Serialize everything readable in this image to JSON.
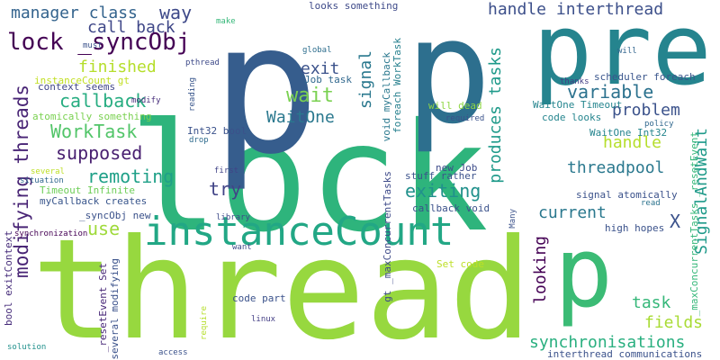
{
  "words": [
    {
      "text": "lock",
      "color": "#2eb47c"
    },
    {
      "text": "thread",
      "color": "#97d83f"
    },
    {
      "text": "p",
      "color": "#365d8d"
    },
    {
      "text": "p",
      "color": "#2d6f8e"
    },
    {
      "text": "pre",
      "color": "#25848e"
    },
    {
      "text": "p",
      "color": "#3bbb75"
    },
    {
      "text": "instanceCount",
      "color": "#22a785"
    },
    {
      "text": "lock _syncObj",
      "color": "#440154"
    },
    {
      "text": "manager class",
      "color": "#33638d"
    },
    {
      "text": "way",
      "color": "#3e4989"
    },
    {
      "text": "call back",
      "color": "#3f4788"
    },
    {
      "text": "handle interthread",
      "color": "#3c4f8a"
    },
    {
      "text": "modifying threads",
      "color": "#482475"
    },
    {
      "text": "signal",
      "color": "#2a788e"
    },
    {
      "text": "finished",
      "color": "#b5de2b"
    },
    {
      "text": "produces tasks",
      "color": "#1f9a8a"
    },
    {
      "text": "exit",
      "color": "#3b528b"
    },
    {
      "text": "variable",
      "color": "#2c728e"
    },
    {
      "text": "callback",
      "color": "#27ad81"
    },
    {
      "text": "wait",
      "color": "#7ad151"
    },
    {
      "text": "WaitOne",
      "color": "#2a788e"
    },
    {
      "text": "problem",
      "color": "#3b528b"
    },
    {
      "text": "WorkTask",
      "color": "#52c569"
    },
    {
      "text": "supposed",
      "color": "#481f70"
    },
    {
      "text": "handle",
      "color": "#b5de2b"
    },
    {
      "text": "threadpool",
      "color": "#2a788e"
    },
    {
      "text": "SignalAndWait",
      "color": "#1f9a8a"
    },
    {
      "text": "remoting",
      "color": "#1fa088"
    },
    {
      "text": "exiting",
      "color": "#21918c"
    },
    {
      "text": "try",
      "color": "#414487"
    },
    {
      "text": "current",
      "color": "#2a788e"
    },
    {
      "text": "X",
      "color": "#3b528b"
    },
    {
      "text": "use",
      "color": "#9fda3a"
    },
    {
      "text": "looking",
      "color": "#440154"
    },
    {
      "text": "task",
      "color": "#35b779"
    },
    {
      "text": "fields",
      "color": "#a8db34"
    },
    {
      "text": "synchronisations",
      "color": "#29af7f"
    },
    {
      "text": "Int32 bool",
      "color": "#3b528b"
    },
    {
      "text": "WaitOne Timeout",
      "color": "#25858e"
    },
    {
      "text": "code looks",
      "color": "#25858e"
    },
    {
      "text": "WaitOne Int32",
      "color": "#25858e"
    },
    {
      "text": "_maxConcurrentTasks _resetEvent",
      "color": "#35b779"
    },
    {
      "text": "looks something",
      "color": "#3e4a89"
    },
    {
      "text": "void myCallback",
      "color": "#2a788e"
    },
    {
      "text": "foreach WorkTask",
      "color": "#27808e"
    },
    {
      "text": "will dead",
      "color": "#8fd744"
    },
    {
      "text": "required",
      "color": "#3b528b"
    },
    {
      "text": "scheduler foreach",
      "color": "#39558c"
    },
    {
      "text": "thanks",
      "color": "#433e85"
    },
    {
      "text": "policy",
      "color": "#31688e"
    },
    {
      "text": "Job task",
      "color": "#31688e"
    },
    {
      "text": "global",
      "color": "#2e6e8e"
    },
    {
      "text": "make",
      "color": "#35b779"
    },
    {
      "text": "must",
      "color": "#3b528b"
    },
    {
      "text": "will",
      "color": "#32658e"
    },
    {
      "text": "pthread",
      "color": "#3e4a89"
    },
    {
      "text": "reading",
      "color": "#39568c"
    },
    {
      "text": "instanceCount gt",
      "color": "#c2df23"
    },
    {
      "text": "context seems",
      "color": "#404688"
    },
    {
      "text": "modify",
      "color": "#472d7b"
    },
    {
      "text": "atomically something",
      "color": "#7ad151"
    },
    {
      "text": "drop",
      "color": "#2f6c8e"
    },
    {
      "text": "first",
      "color": "#414487"
    },
    {
      "text": "new Job",
      "color": "#3e4c8a"
    },
    {
      "text": "stuff rather",
      "color": "#3b528b"
    },
    {
      "text": "callback void",
      "color": "#3b528b"
    },
    {
      "text": "signal atomically",
      "color": "#3b528b"
    },
    {
      "text": "read",
      "color": "#2c738e"
    },
    {
      "text": "high hopes",
      "color": "#3b528b"
    },
    {
      "text": "gt _maxConcurrentTasks",
      "color": "#3e4a89"
    },
    {
      "text": "Many",
      "color": "#3b528b"
    },
    {
      "text": "Set code",
      "color": "#bddf26"
    },
    {
      "text": "code part",
      "color": "#3b528b"
    },
    {
      "text": "Timeout Infinite",
      "color": "#6ece58"
    },
    {
      "text": "myCallback creates",
      "color": "#39568c"
    },
    {
      "text": "_syncObj new",
      "color": "#3b528b"
    },
    {
      "text": "situation",
      "color": "#31688e"
    },
    {
      "text": "several",
      "color": "#bddf26"
    },
    {
      "text": "bool exitContext",
      "color": "#472d7b"
    },
    {
      "text": "_resetEvent Set",
      "color": "#482878"
    },
    {
      "text": "several modifying",
      "color": "#3b528b"
    },
    {
      "text": "library",
      "color": "#3e4a89"
    },
    {
      "text": "synchronization",
      "color": "#440154"
    },
    {
      "text": "want",
      "color": "#3e4a89"
    },
    {
      "text": "linux",
      "color": "#433e85"
    },
    {
      "text": "require",
      "color": "#b5de2b"
    },
    {
      "text": "solution",
      "color": "#21918c"
    },
    {
      "text": "access",
      "color": "#3b528b"
    },
    {
      "text": "interthread communications",
      "color": "#3b528b"
    }
  ]
}
